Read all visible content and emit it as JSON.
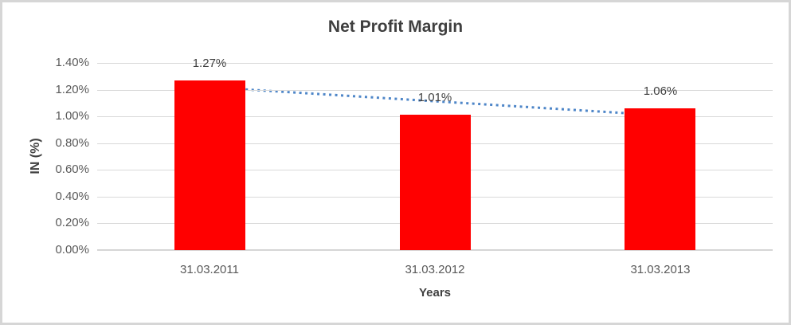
{
  "chart_data": {
    "type": "bar",
    "title": "Net Profit Margin",
    "xlabel": "Years",
    "ylabel": "IN (%)",
    "categories": [
      "31.03.2011",
      "31.03.2012",
      "31.03.2013"
    ],
    "values": [
      1.27,
      1.01,
      1.06
    ],
    "data_labels": [
      "1.27%",
      "1.01%",
      "1.06%"
    ],
    "y_ticks": [
      "1.40%",
      "1.20%",
      "1.00%",
      "0.80%",
      "0.60%",
      "0.40%",
      "0.20%",
      "0.00%"
    ],
    "ylim": [
      0,
      1.4
    ],
    "y_step": 0.2,
    "grid": true,
    "legend": "none",
    "trendline": {
      "type": "linear",
      "style": "dotted",
      "color": "#4e86c8"
    },
    "colors": {
      "bar": "#ff0000",
      "gridline": "#d9d9d9",
      "axis_line": "#cfcfcf",
      "tick_text": "#595959",
      "label_text": "#404040",
      "title_text": "#3f3f3f",
      "frame_border": "#d6d6d6"
    }
  }
}
